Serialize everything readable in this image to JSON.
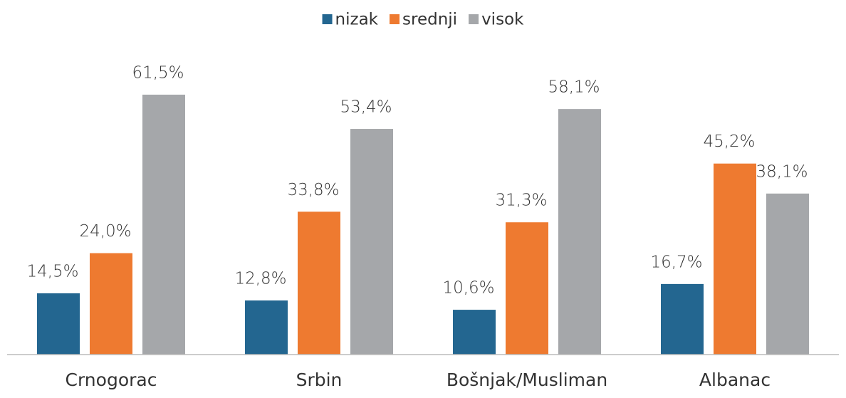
{
  "chart_data": {
    "type": "bar",
    "categories": [
      "Crnogorac",
      "Srbin",
      "Bošnjak/Musliman",
      "Albanac"
    ],
    "series": [
      {
        "name": "nizak",
        "color": "#236690",
        "values": [
          14.5,
          12.8,
          10.6,
          16.7
        ],
        "value_labels": [
          "14,5%",
          "12,8%",
          "10,6%",
          "16,7%"
        ]
      },
      {
        "name": "srednji",
        "color": "#ee7a30",
        "values": [
          24.0,
          33.8,
          31.3,
          45.2
        ],
        "value_labels": [
          "24,0%",
          "33,8%",
          "31,3%",
          "45,2%"
        ]
      },
      {
        "name": "visok",
        "color": "#a5a7aa",
        "values": [
          61.5,
          53.4,
          58.1,
          38.1
        ],
        "value_labels": [
          "61,5%",
          "53,4%",
          "58,1%",
          "38,1%"
        ]
      }
    ],
    "ylim": [
      0,
      70
    ],
    "legend": "top"
  }
}
